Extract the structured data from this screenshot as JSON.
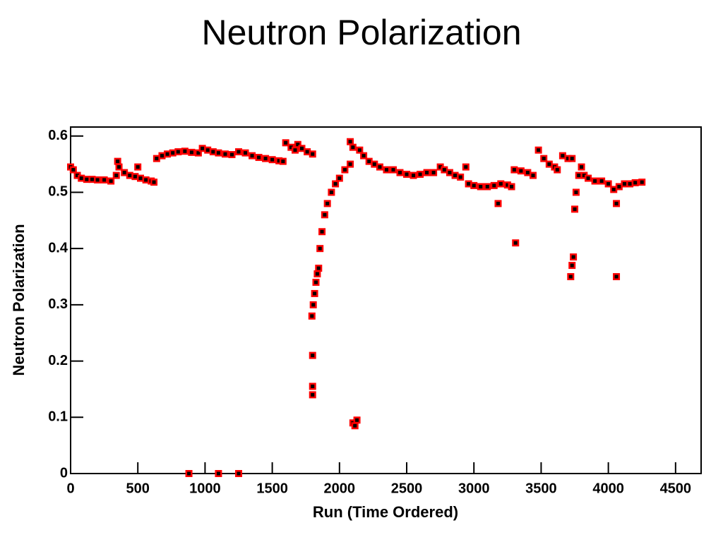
{
  "chart_data": {
    "type": "scatter",
    "title": "Neutron Polarization",
    "xlabel": "Run (Time Ordered)",
    "ylabel": "Neutron Polarization",
    "xlim": [
      0,
      4690
    ],
    "ylim": [
      0,
      0.616
    ],
    "xticks": [
      0,
      500,
      1000,
      1500,
      2000,
      2500,
      3000,
      3500,
      4000,
      4500
    ],
    "yticks": [
      0,
      0.1,
      0.2,
      0.3,
      0.4,
      0.5,
      0.6
    ],
    "grid": false,
    "series": [
      {
        "name": "Neutron Polarization",
        "color": "#ff0000",
        "center_color": "#000000",
        "x": [
          0,
          20,
          50,
          80,
          120,
          160,
          200,
          250,
          300,
          340,
          360,
          400,
          440,
          480,
          520,
          560,
          600,
          620,
          350,
          500,
          640,
          680,
          720,
          760,
          800,
          850,
          900,
          950,
          980,
          1020,
          1060,
          1100,
          1150,
          1200,
          1250,
          1300,
          1350,
          1400,
          1450,
          1500,
          1550,
          1580,
          1600,
          1640,
          1670,
          1690,
          1720,
          1760,
          1800,
          1795,
          1805,
          1815,
          1825,
          1835,
          1845,
          1855,
          1870,
          1890,
          1910,
          1940,
          1970,
          2000,
          2040,
          2080,
          1800,
          1800,
          1800,
          2080,
          2100,
          2100,
          2115,
          2130,
          2150,
          2180,
          2220,
          2260,
          2300,
          2350,
          2400,
          2450,
          2500,
          2550,
          2600,
          2650,
          2700,
          2750,
          2780,
          2820,
          2860,
          2900,
          2940,
          2960,
          3000,
          3050,
          3100,
          3150,
          3200,
          3250,
          3280,
          3300,
          3350,
          3400,
          3440,
          3480,
          3520,
          3560,
          3600,
          3620,
          3660,
          3700,
          3730,
          3180,
          3310,
          3720,
          3730,
          3740,
          3750,
          3760,
          3780,
          3800,
          3820,
          3850,
          3900,
          3950,
          4000,
          4040,
          4060,
          4060,
          4080,
          4120,
          4160,
          4200,
          4250,
          880,
          1100,
          1250
        ],
        "values": [
          0.545,
          0.54,
          0.53,
          0.525,
          0.523,
          0.523,
          0.522,
          0.522,
          0.52,
          0.53,
          0.545,
          0.535,
          0.53,
          0.528,
          0.525,
          0.522,
          0.52,
          0.518,
          0.555,
          0.545,
          0.56,
          0.565,
          0.568,
          0.57,
          0.572,
          0.573,
          0.571,
          0.57,
          0.578,
          0.575,
          0.572,
          0.57,
          0.568,
          0.567,
          0.572,
          0.57,
          0.565,
          0.562,
          0.56,
          0.558,
          0.556,
          0.555,
          0.588,
          0.58,
          0.575,
          0.585,
          0.578,
          0.572,
          0.568,
          0.28,
          0.3,
          0.32,
          0.34,
          0.355,
          0.365,
          0.4,
          0.43,
          0.46,
          0.48,
          0.5,
          0.515,
          0.525,
          0.54,
          0.55,
          0.21,
          0.155,
          0.14,
          0.59,
          0.58,
          0.09,
          0.085,
          0.095,
          0.575,
          0.565,
          0.555,
          0.55,
          0.545,
          0.54,
          0.54,
          0.535,
          0.532,
          0.53,
          0.532,
          0.535,
          0.535,
          0.545,
          0.54,
          0.535,
          0.53,
          0.527,
          0.545,
          0.515,
          0.512,
          0.51,
          0.51,
          0.512,
          0.515,
          0.513,
          0.51,
          0.54,
          0.538,
          0.535,
          0.53,
          0.575,
          0.56,
          0.55,
          0.545,
          0.54,
          0.565,
          0.56,
          0.56,
          0.48,
          0.41,
          0.35,
          0.37,
          0.385,
          0.47,
          0.5,
          0.53,
          0.545,
          0.53,
          0.525,
          0.52,
          0.52,
          0.515,
          0.505,
          0.48,
          0.35,
          0.51,
          0.515,
          0.515,
          0.517,
          0.518,
          0,
          0,
          0
        ]
      }
    ]
  }
}
